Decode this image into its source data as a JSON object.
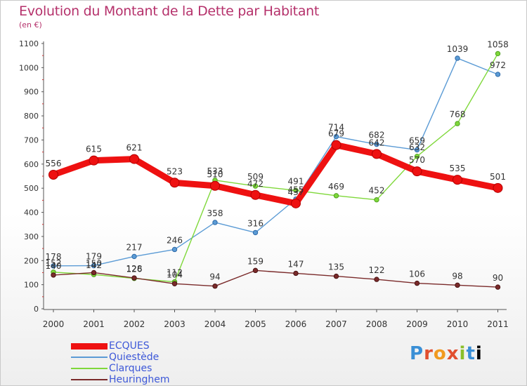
{
  "chart_data": {
    "type": "line",
    "title": "Evolution du Montant de la Dette par Habitant",
    "subtitle": "(en €)",
    "x": [
      "2000",
      "2001",
      "2002",
      "2003",
      "2004",
      "2005",
      "2006",
      "2007",
      "2008",
      "2009",
      "2010",
      "2011"
    ],
    "ylim": [
      0,
      1100
    ],
    "yticks": [
      "0",
      "100",
      "200",
      "300",
      "400",
      "500",
      "600",
      "700",
      "800",
      "900",
      "1000",
      "1100"
    ],
    "grid": false,
    "legend_position": "bottom-left",
    "series": [
      {
        "name": "ECQUES",
        "color": "#ee1111",
        "values": [
          556,
          615,
          621,
          523,
          510,
          472,
          437,
          679,
          642,
          570,
          535,
          501
        ],
        "labels": [
          "556",
          "615",
          "621",
          "523",
          "510",
          "472",
          "437",
          "679",
          "642",
          "570",
          "535",
          "501"
        ]
      },
      {
        "name": "Quiestède",
        "color": "#5b9bd5",
        "values": [
          178,
          179,
          217,
          246,
          358,
          316,
          455,
          714,
          682,
          659,
          1039,
          972
        ],
        "labels": [
          "178",
          "179",
          "217",
          "246",
          "358",
          "316",
          "455",
          "714",
          "682",
          "659",
          "1039",
          "972"
        ]
      },
      {
        "name": "Clarques",
        "color": "#7fd83a",
        "values": [
          152,
          142,
          126,
          112,
          533,
          509,
          491,
          469,
          452,
          632,
          768,
          1058
        ],
        "labels": [
          "152",
          "142",
          "126",
          "112",
          "533",
          "509",
          "491",
          "469",
          "452",
          "632",
          "768",
          "1058"
        ]
      },
      {
        "name": "Heuringhem",
        "color": "#7a2a2a",
        "values": [
          140,
          150,
          128,
          104,
          94,
          159,
          147,
          135,
          122,
          106,
          98,
          90
        ],
        "labels": [
          "140",
          "150",
          "128",
          "104",
          "94",
          "159",
          "147",
          "135",
          "122",
          "106",
          "98",
          "90"
        ]
      }
    ]
  },
  "legend": {
    "items": [
      {
        "label": "ECQUES",
        "color": "#ee1111"
      },
      {
        "label": "Quiestède",
        "color": "#5b9bd5"
      },
      {
        "label": "Clarques",
        "color": "#7fd83a"
      },
      {
        "label": "Heuringhem",
        "color": "#7a2a2a"
      }
    ]
  },
  "brand": {
    "name": "Proxiti",
    "letters": [
      "P",
      "r",
      "o",
      "x",
      "i",
      "t",
      "i"
    ]
  }
}
